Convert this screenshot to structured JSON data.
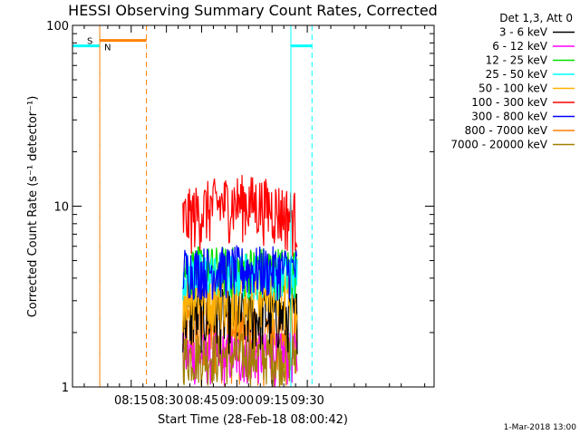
{
  "chart_data": {
    "type": "line",
    "title": "HESSI Observing Summary Count Rates, Corrected",
    "xlabel": "Start Time (28-Feb-18 08:00:42)",
    "ylabel": "Corrected Count Rate (s⁻¹ detector⁻¹)",
    "yscale": "log",
    "ylim": [
      1,
      100
    ],
    "xlim_minutes": [
      -10,
      144
    ],
    "x_ticks": [
      {
        "label": "08:15",
        "t": 15
      },
      {
        "label": "08:30",
        "t": 30
      },
      {
        "label": "08:45",
        "t": 45
      },
      {
        "label": "09:00",
        "t": 60
      },
      {
        "label": "09:15",
        "t": 75
      },
      {
        "label": "09:30",
        "t": 90
      }
    ],
    "y_ticks": [
      {
        "label": "100",
        "v": 100
      },
      {
        "label": "10",
        "v": 10
      },
      {
        "label": "1",
        "v": 1
      }
    ],
    "data_window_minutes": [
      37,
      86
    ],
    "legend_header": "Det 1,3, Att 0",
    "legend_placement": "right",
    "series": [
      {
        "name": "3 - 6 keV",
        "color": "#000000",
        "level": [
          1.5,
          3.5
        ],
        "stat": 3
      },
      {
        "name": "6 - 12 keV",
        "color": "#ff00ff",
        "level": [
          1.0,
          2.0
        ],
        "stat": 1
      },
      {
        "name": "12 - 25 keV",
        "color": "#00e000",
        "level": [
          3.0,
          6.0
        ],
        "stat": 3
      },
      {
        "name": "25 - 50 keV",
        "color": "#00ffff",
        "level": [
          3.0,
          5.5
        ],
        "stat": 3
      },
      {
        "name": "50 - 100 keV",
        "color": "#ffb000",
        "level": [
          2.0,
          5.0
        ],
        "stat": 2
      },
      {
        "name": "100 - 300 keV",
        "color": "#ff0000",
        "level": [
          5.0,
          12.0
        ],
        "stat": 5
      },
      {
        "name": "300 - 800 keV",
        "color": "#0000ff",
        "level": [
          3.0,
          6.0
        ],
        "stat": 3
      },
      {
        "name": "800 - 7000 keV",
        "color": "#ff7f00",
        "level": [
          1.0,
          3.0
        ],
        "stat": 1
      },
      {
        "name": "7000 - 20000 keV",
        "color": "#a08000",
        "level": [
          1.0,
          2.0
        ],
        "stat": 1
      }
    ],
    "annotations": {
      "flags_color_cyan": "#00ffff",
      "flags_color_orange": "#ff7f00",
      "saa_label": "S",
      "night_label": "N",
      "night_bars": [
        [
          -10,
          1.6
        ],
        [
          83,
          92
        ]
      ],
      "saa_bar": [
        1.6,
        21.5
      ],
      "cyan_solid_t": [
        83
      ],
      "cyan_dashed_t": [
        1.6,
        92
      ],
      "orange_solid_t": [
        1.6
      ],
      "orange_dashed_t": [
        21.5
      ],
      "flag_level": 77
    },
    "footer_date": "1-Mar-2018 13:00"
  }
}
